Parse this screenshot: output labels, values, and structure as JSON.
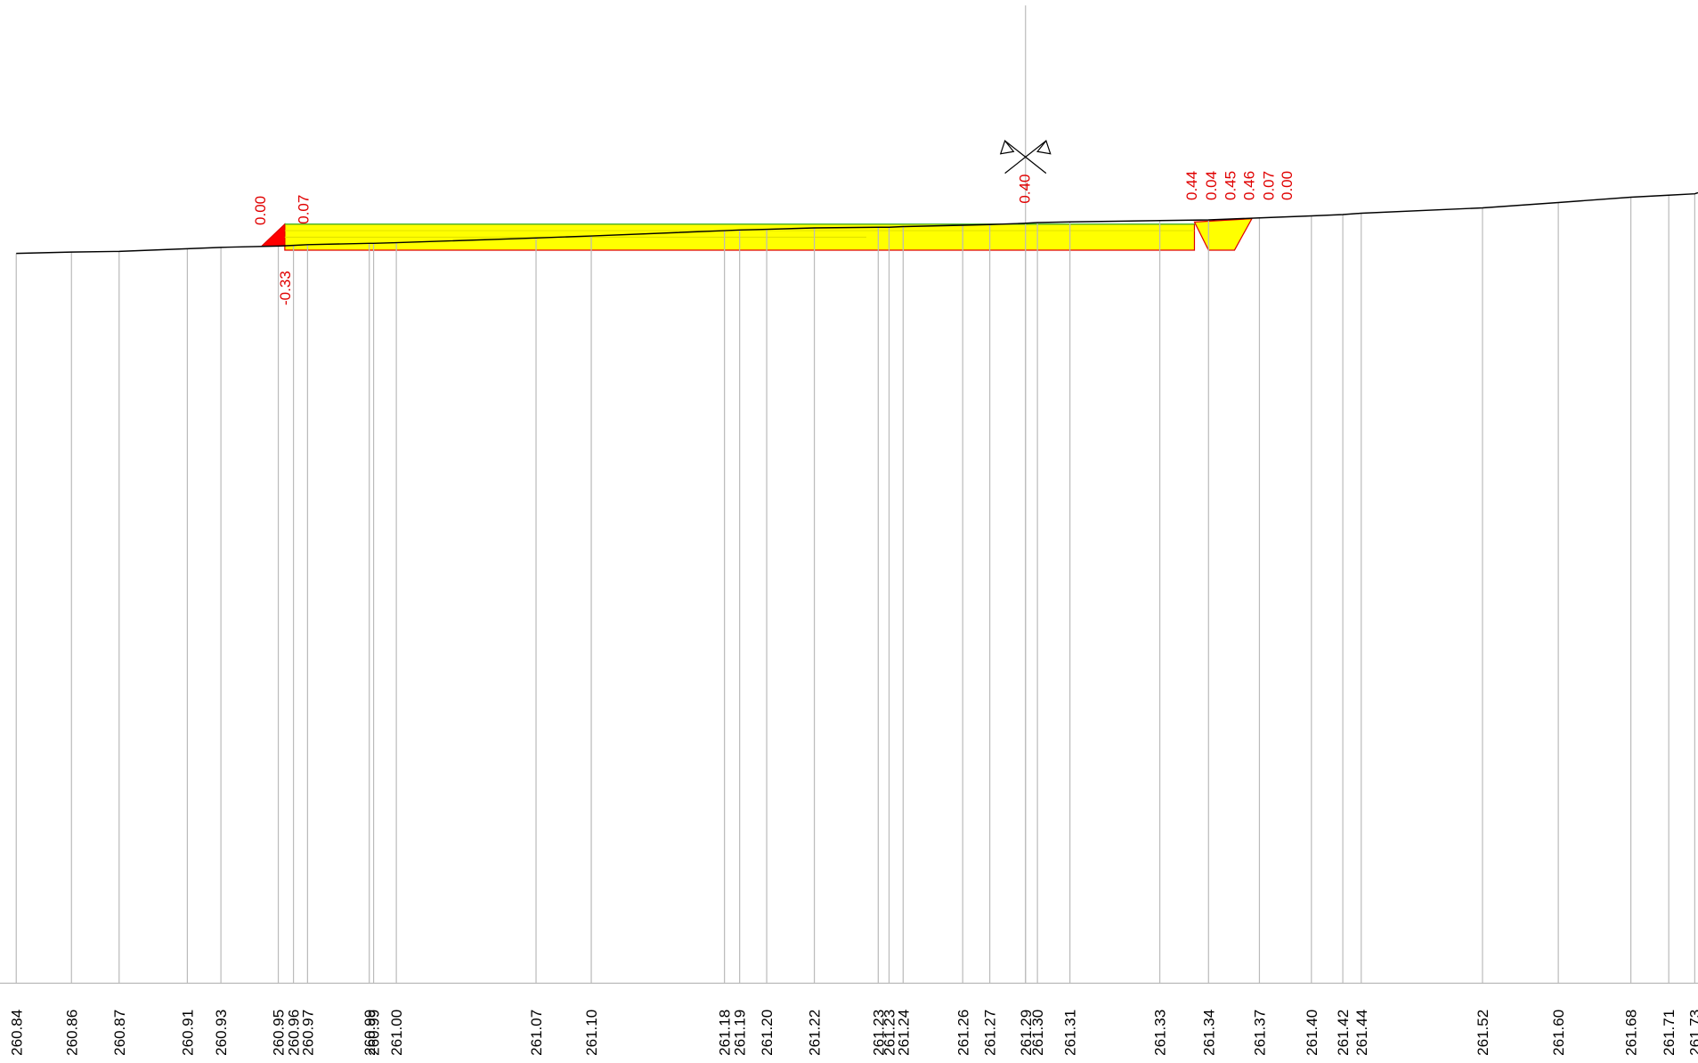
{
  "ground_elevations": [
    "260.84",
    "260.86",
    "260.87",
    "260.91",
    "260.93",
    "260.95",
    "260.96",
    "260.97",
    "260.99",
    "260.99",
    "261.00",
    "261.07",
    "261.10",
    "261.18",
    "261.19",
    "261.20",
    "261.22",
    "261.23",
    "261.23",
    "261.24",
    "261.26",
    "261.27",
    "261.29",
    "261.30",
    "261.31",
    "261.33",
    "261.34",
    "261.37",
    "261.40",
    "261.42",
    "261.44",
    "261.52",
    "261.60",
    "261.68",
    "261.71",
    "261.73"
  ],
  "offset_labels": {
    "left_top": [
      "0.00",
      "0.07"
    ],
    "left_bottom": "-0.33",
    "axis": "0.40",
    "right": [
      "0.44",
      "0.04",
      "0.45",
      "0.46",
      "0.07",
      "0.00"
    ]
  }
}
